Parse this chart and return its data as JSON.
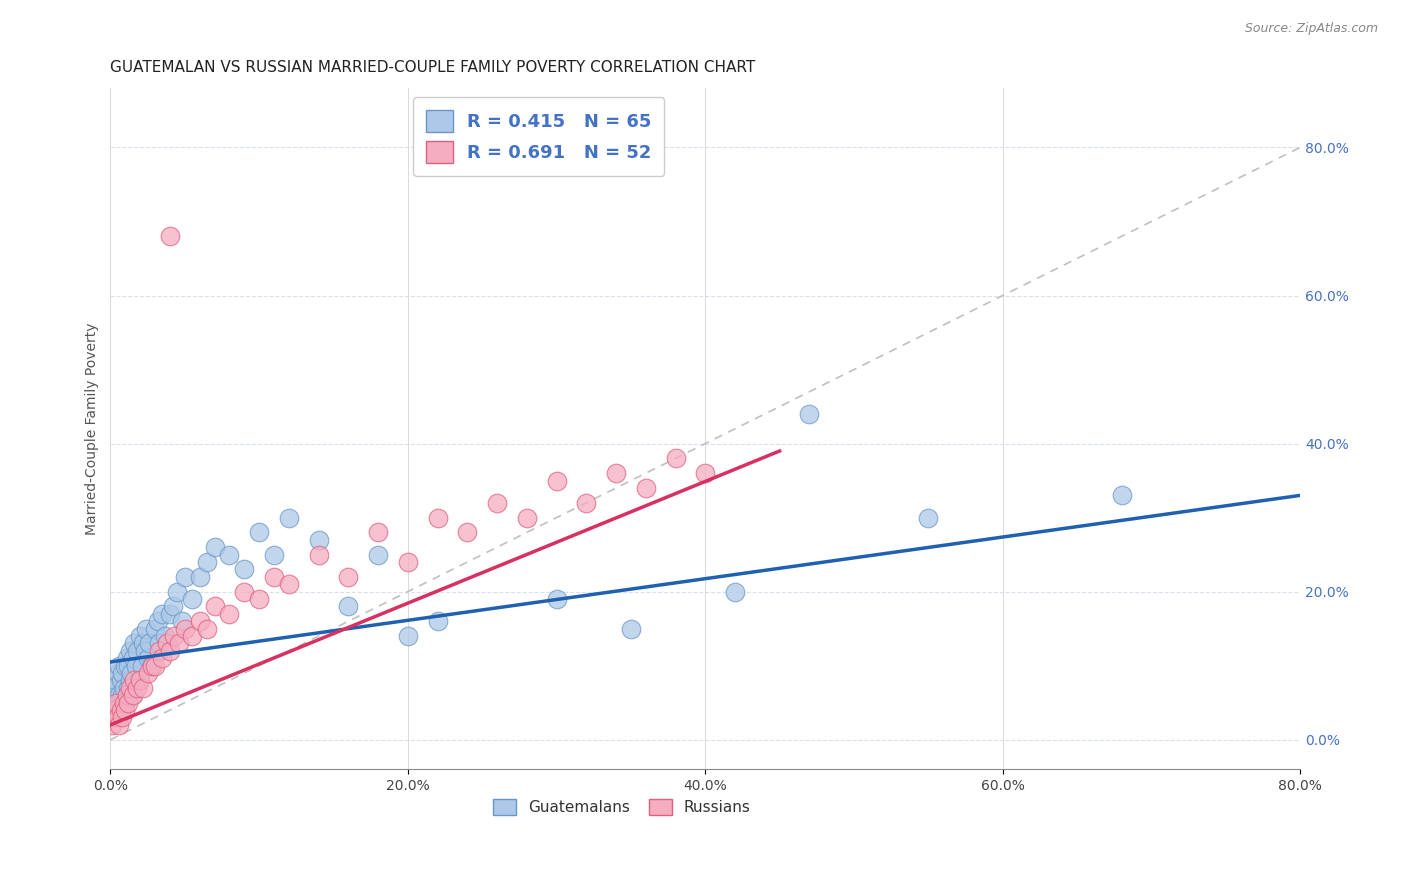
{
  "title": "GUATEMALAN VS RUSSIAN MARRIED-COUPLE FAMILY POVERTY CORRELATION CHART",
  "source": "Source: ZipAtlas.com",
  "ylabel": "Married-Couple Family Poverty",
  "xlim": [
    0,
    0.8
  ],
  "ylim": [
    -0.04,
    0.88
  ],
  "xticks": [
    0.0,
    0.2,
    0.4,
    0.6,
    0.8
  ],
  "yticks_right": [
    0.0,
    0.2,
    0.4,
    0.6,
    0.8
  ],
  "guatemalan_color": "#adc8e8",
  "russian_color": "#f5adc0",
  "guatemalan_edge": "#6898c8",
  "russian_edge": "#e06080",
  "trend_guatemalan_color": "#2060b0",
  "trend_russian_color": "#d83060",
  "ref_line_color": "#c0c0c0",
  "background_color": "#ffffff",
  "grid_color": "#d8dff0",
  "title_fontsize": 11,
  "label_fontsize": 10,
  "tick_fontsize": 10,
  "guatemalan_x": [
    0.001,
    0.002,
    0.003,
    0.004,
    0.005,
    0.005,
    0.006,
    0.006,
    0.007,
    0.007,
    0.008,
    0.008,
    0.009,
    0.01,
    0.01,
    0.011,
    0.012,
    0.012,
    0.013,
    0.013,
    0.014,
    0.015,
    0.015,
    0.016,
    0.017,
    0.018,
    0.019,
    0.02,
    0.021,
    0.022,
    0.023,
    0.024,
    0.025,
    0.026,
    0.027,
    0.03,
    0.032,
    0.033,
    0.035,
    0.037,
    0.04,
    0.042,
    0.045,
    0.048,
    0.05,
    0.055,
    0.06,
    0.065,
    0.07,
    0.08,
    0.09,
    0.1,
    0.11,
    0.12,
    0.14,
    0.16,
    0.18,
    0.2,
    0.22,
    0.3,
    0.35,
    0.42,
    0.47,
    0.55,
    0.68
  ],
  "guatemalan_y": [
    0.06,
    0.07,
    0.08,
    0.05,
    0.09,
    0.04,
    0.1,
    0.06,
    0.08,
    0.05,
    0.09,
    0.06,
    0.07,
    0.1,
    0.05,
    0.11,
    0.1,
    0.07,
    0.12,
    0.08,
    0.09,
    0.11,
    0.06,
    0.13,
    0.1,
    0.12,
    0.08,
    0.14,
    0.1,
    0.13,
    0.12,
    0.15,
    0.11,
    0.13,
    0.1,
    0.15,
    0.16,
    0.13,
    0.17,
    0.14,
    0.17,
    0.18,
    0.2,
    0.16,
    0.22,
    0.19,
    0.22,
    0.24,
    0.26,
    0.25,
    0.23,
    0.28,
    0.25,
    0.3,
    0.27,
    0.18,
    0.25,
    0.14,
    0.16,
    0.19,
    0.15,
    0.2,
    0.44,
    0.3,
    0.33
  ],
  "russian_x": [
    0.001,
    0.002,
    0.003,
    0.004,
    0.005,
    0.006,
    0.007,
    0.008,
    0.009,
    0.01,
    0.011,
    0.012,
    0.013,
    0.015,
    0.016,
    0.018,
    0.02,
    0.022,
    0.025,
    0.028,
    0.03,
    0.033,
    0.035,
    0.038,
    0.04,
    0.043,
    0.046,
    0.05,
    0.055,
    0.06,
    0.065,
    0.07,
    0.08,
    0.09,
    0.1,
    0.11,
    0.12,
    0.14,
    0.16,
    0.18,
    0.2,
    0.22,
    0.24,
    0.26,
    0.28,
    0.3,
    0.32,
    0.34,
    0.36,
    0.38,
    0.4,
    0.04
  ],
  "russian_y": [
    0.02,
    0.03,
    0.04,
    0.05,
    0.03,
    0.02,
    0.04,
    0.03,
    0.05,
    0.04,
    0.06,
    0.05,
    0.07,
    0.06,
    0.08,
    0.07,
    0.08,
    0.07,
    0.09,
    0.1,
    0.1,
    0.12,
    0.11,
    0.13,
    0.12,
    0.14,
    0.13,
    0.15,
    0.14,
    0.16,
    0.15,
    0.18,
    0.17,
    0.2,
    0.19,
    0.22,
    0.21,
    0.25,
    0.22,
    0.28,
    0.24,
    0.3,
    0.28,
    0.32,
    0.3,
    0.35,
    0.32,
    0.36,
    0.34,
    0.38,
    0.36,
    0.68
  ],
  "trend_guat_x0": 0.0,
  "trend_guat_x1": 0.8,
  "trend_guat_y0": 0.105,
  "trend_guat_y1": 0.33,
  "trend_russ_x0": 0.0,
  "trend_russ_x1": 0.45,
  "trend_russ_y0": 0.02,
  "trend_russ_y1": 0.39
}
